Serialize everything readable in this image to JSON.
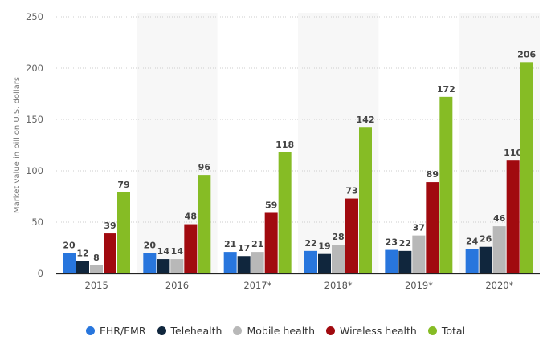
{
  "chart_data": {
    "type": "bar",
    "title": "",
    "xlabel": "",
    "ylabel": "Market value in billion U.S. dollars",
    "ylim": [
      0,
      250
    ],
    "yticks": [
      0,
      50,
      100,
      150,
      200,
      250
    ],
    "grid": true,
    "legend_position": "bottom",
    "categories": [
      "2015",
      "2016",
      "2017*",
      "2018*",
      "2019*",
      "2020*"
    ],
    "series": [
      {
        "name": "EHR/EMR",
        "color": "#2876dd",
        "values": [
          20,
          20,
          21,
          22,
          23,
          24
        ]
      },
      {
        "name": "Telehealth",
        "color": "#10263d",
        "values": [
          12,
          14,
          17,
          19,
          22,
          26
        ]
      },
      {
        "name": "Mobile health",
        "color": "#b8b8b8",
        "values": [
          8,
          14,
          21,
          28,
          37,
          46
        ]
      },
      {
        "name": "Wireless health",
        "color": "#a10a0f",
        "values": [
          39,
          48,
          59,
          73,
          89,
          110
        ]
      },
      {
        "name": "Total",
        "color": "#86bc25",
        "values": [
          79,
          96,
          118,
          142,
          172,
          206
        ]
      }
    ]
  }
}
